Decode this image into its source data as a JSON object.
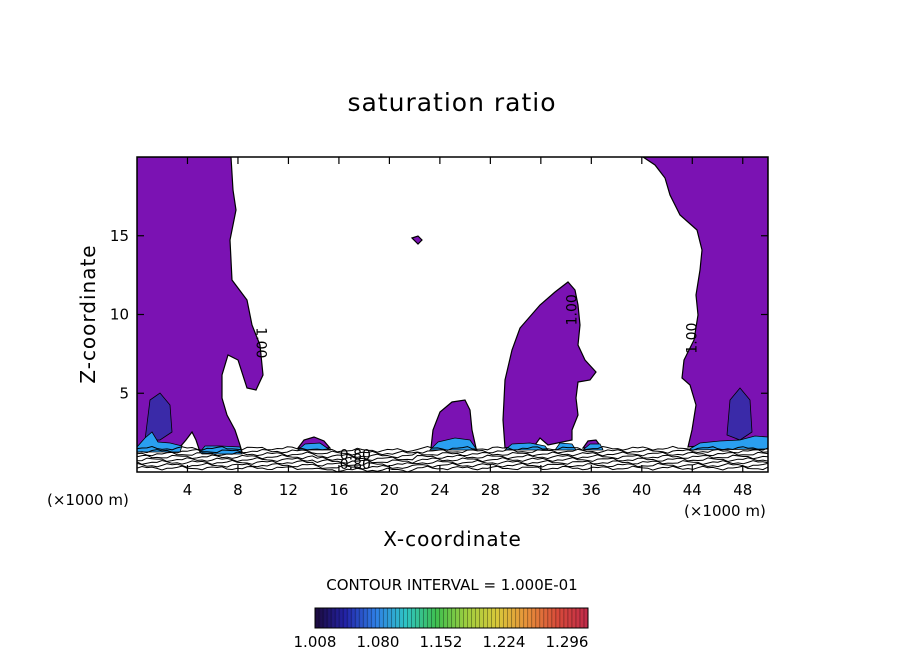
{
  "chart_data": {
    "type": "heatmap",
    "title": "saturation ratio",
    "xlabel": "X-coordinate",
    "ylabel": "Z-coordinate",
    "x_unit": "(×1000 m)",
    "xlim": [
      0,
      50
    ],
    "ylim": [
      0,
      20
    ],
    "x_ticks": [
      4,
      8,
      12,
      16,
      20,
      24,
      28,
      32,
      36,
      40,
      44,
      48
    ],
    "y_ticks": [
      5,
      10,
      15
    ],
    "contour_interval_label": "CONTOUR INTERVAL = 1.000E-01",
    "contour_labels": [
      {
        "text": "1.00",
        "x": 9.8,
        "z": 8.2,
        "angle": 90
      },
      {
        "text": "1.00",
        "x": 34.5,
        "z": 10.3,
        "angle": -90
      },
      {
        "text": "1.00",
        "x": 44.0,
        "z": 8.5,
        "angle": -90
      },
      {
        "text": "0.80",
        "x": 17.3,
        "z": 1.05,
        "angle": 0
      },
      {
        "text": "0.80",
        "x": 17.3,
        "z": 0.45,
        "angle": 0
      }
    ],
    "colorbar": {
      "labels": [
        "1.008",
        "1.080",
        "1.152",
        "1.224",
        "1.296"
      ],
      "range": [
        1.008,
        1.32
      ],
      "colors": [
        "#1c0a3c",
        "#2323a8",
        "#2f7fe6",
        "#2fc4c4",
        "#3fbf4f",
        "#9fce3f",
        "#d8c83a",
        "#e8903a",
        "#d84a3a",
        "#c02a4a"
      ]
    },
    "supersaturated_color": "#7b12b3",
    "regions_above_1": [
      {
        "name": "left-column",
        "x_range": [
          0,
          9.5
        ],
        "z_range": [
          1.5,
          20
        ]
      },
      {
        "name": "small-cell-14",
        "x_range": [
          12.8,
          15
        ],
        "z_range": [
          1.5,
          2.2
        ]
      },
      {
        "name": "small-cell-22",
        "x_range": [
          22.0,
          22.8
        ],
        "z_range": [
          14.6,
          14.9
        ]
      },
      {
        "name": "cell-25",
        "x_range": [
          23.2,
          26.5
        ],
        "z_range": [
          1.5,
          4.6
        ]
      },
      {
        "name": "tower-32",
        "x_range": [
          29.2,
          36.0
        ],
        "z_range": [
          1.5,
          12.0
        ]
      },
      {
        "name": "small-cell-36",
        "x_range": [
          35.5,
          37.0
        ],
        "z_range": [
          1.5,
          1.9
        ]
      },
      {
        "name": "right-column",
        "x_range": [
          43.5,
          50
        ],
        "z_range": [
          1.5,
          20
        ]
      }
    ],
    "subsaturated_isolines_below_z": 1.5
  }
}
